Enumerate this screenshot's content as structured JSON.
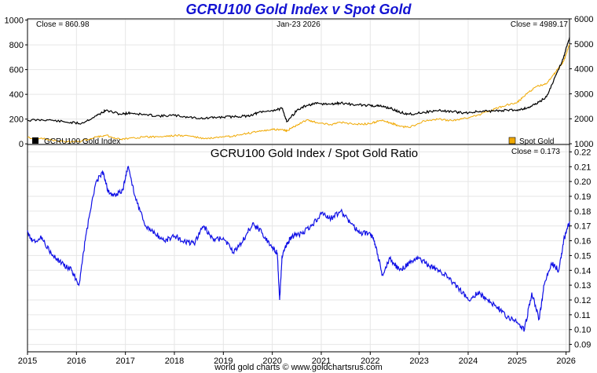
{
  "header": {
    "title": "GCRU100 Gold Index v Spot Gold"
  },
  "footer": {
    "credit": "world gold charts © www.goldchartsrus.com"
  },
  "colors": {
    "index": "#000000",
    "spot_gold": "#f0a800",
    "ratio": "#1010e6",
    "grid": "#e6e6e6"
  },
  "chart_data": [
    {
      "type": "line",
      "title": "",
      "date_label": "Jan-23  2026",
      "close_left": "Close = 860.98",
      "close_right": "Close = 4989.17",
      "x_ticks": [
        2015,
        2016,
        2017,
        2018,
        2019,
        2020,
        2021,
        2022,
        2023,
        2024,
        2025,
        2026
      ],
      "xlim": [
        2015.0,
        2026.07
      ],
      "left_axis": {
        "ticks": [
          0,
          200,
          400,
          600,
          800,
          1000
        ],
        "ylim": [
          -5,
          1010
        ]
      },
      "right_axis": {
        "ticks": [
          1000,
          2000,
          3000,
          4000,
          5000,
          6000
        ],
        "ylim": [
          970,
          6000
        ]
      },
      "legend": {
        "left": "GCRU100 Gold Index",
        "right": "Spot Gold",
        "placement": "bottom"
      },
      "series": [
        {
          "name": "GCRU100 Gold Index",
          "axis": "left",
          "x": [
            2015.0,
            2015.4,
            2015.8,
            2016.1,
            2016.4,
            2016.6,
            2016.9,
            2017.1,
            2017.4,
            2017.7,
            2018.0,
            2018.3,
            2018.6,
            2018.9,
            2019.2,
            2019.5,
            2019.7,
            2020.0,
            2020.2,
            2020.3,
            2020.5,
            2020.7,
            2020.9,
            2021.2,
            2021.4,
            2021.7,
            2022.0,
            2022.2,
            2022.4,
            2022.6,
            2022.8,
            2023.1,
            2023.4,
            2023.7,
            2023.9,
            2024.2,
            2024.5,
            2024.7,
            2025.0,
            2025.2,
            2025.4,
            2025.6,
            2025.8,
            2025.95,
            2026.07
          ],
          "values": [
            190,
            195,
            175,
            165,
            225,
            270,
            240,
            250,
            235,
            225,
            230,
            215,
            205,
            215,
            220,
            225,
            250,
            270,
            285,
            180,
            270,
            310,
            325,
            320,
            330,
            315,
            310,
            305,
            290,
            255,
            240,
            255,
            270,
            260,
            250,
            260,
            265,
            270,
            275,
            290,
            325,
            380,
            560,
            700,
            861
          ]
        },
        {
          "name": "Spot Gold",
          "axis": "right",
          "x": [
            2015.0,
            2015.4,
            2015.8,
            2016.1,
            2016.4,
            2016.6,
            2016.9,
            2017.1,
            2017.4,
            2017.7,
            2018.0,
            2018.3,
            2018.6,
            2018.9,
            2019.2,
            2019.5,
            2019.7,
            2020.0,
            2020.2,
            2020.3,
            2020.5,
            2020.7,
            2020.9,
            2021.2,
            2021.4,
            2021.7,
            2022.0,
            2022.2,
            2022.4,
            2022.6,
            2022.8,
            2023.1,
            2023.4,
            2023.7,
            2023.9,
            2024.2,
            2024.5,
            2024.7,
            2025.0,
            2025.2,
            2025.4,
            2025.6,
            2025.8,
            2025.95,
            2026.07
          ],
          "values": [
            1250,
            1180,
            1080,
            1100,
            1270,
            1340,
            1170,
            1230,
            1270,
            1280,
            1330,
            1320,
            1200,
            1240,
            1300,
            1410,
            1500,
            1560,
            1580,
            1520,
            1750,
            1950,
            1850,
            1770,
            1850,
            1780,
            1800,
            1930,
            1850,
            1700,
            1650,
            1920,
            1980,
            1920,
            2000,
            2150,
            2350,
            2500,
            2650,
            3000,
            3300,
            3400,
            3900,
            4300,
            4989
          ]
        }
      ]
    },
    {
      "type": "line",
      "title": "GCRU100 Gold Index  /  Spot Gold Ratio",
      "close": "Close = 0.173",
      "x_ticks": [
        2015,
        2016,
        2017,
        2018,
        2019,
        2020,
        2021,
        2022,
        2023,
        2024,
        2025,
        2026
      ],
      "y_ticks": [
        0.09,
        0.1,
        0.11,
        0.12,
        0.13,
        0.14,
        0.15,
        0.16,
        0.17,
        0.18,
        0.19,
        0.2,
        0.21,
        0.22
      ],
      "xlim": [
        2015.0,
        2026.07
      ],
      "ylim": [
        0.085,
        0.225
      ],
      "series": [
        {
          "name": "",
          "x": [
            2015.0,
            2015.1,
            2015.3,
            2015.5,
            2015.7,
            2015.9,
            2016.05,
            2016.2,
            2016.4,
            2016.55,
            2016.65,
            2016.8,
            2016.95,
            2017.05,
            2017.2,
            2017.4,
            2017.6,
            2017.8,
            2018.0,
            2018.2,
            2018.4,
            2018.6,
            2018.8,
            2019.0,
            2019.2,
            2019.4,
            2019.6,
            2019.8,
            2020.0,
            2020.1,
            2020.15,
            2020.2,
            2020.3,
            2020.4,
            2020.6,
            2020.8,
            2021.0,
            2021.2,
            2021.4,
            2021.6,
            2021.8,
            2022.0,
            2022.1,
            2022.25,
            2022.4,
            2022.6,
            2022.8,
            2023.0,
            2023.2,
            2023.4,
            2023.6,
            2023.8,
            2024.0,
            2024.2,
            2024.4,
            2024.6,
            2024.8,
            2025.0,
            2025.15,
            2025.3,
            2025.45,
            2025.55,
            2025.7,
            2025.85,
            2025.95,
            2026.07
          ],
          "values": [
            0.167,
            0.16,
            0.162,
            0.15,
            0.145,
            0.14,
            0.13,
            0.165,
            0.2,
            0.206,
            0.193,
            0.19,
            0.195,
            0.21,
            0.19,
            0.17,
            0.165,
            0.16,
            0.163,
            0.16,
            0.158,
            0.17,
            0.16,
            0.162,
            0.152,
            0.16,
            0.172,
            0.165,
            0.155,
            0.152,
            0.12,
            0.15,
            0.158,
            0.163,
            0.165,
            0.17,
            0.178,
            0.175,
            0.18,
            0.172,
            0.165,
            0.165,
            0.158,
            0.137,
            0.148,
            0.14,
            0.145,
            0.148,
            0.143,
            0.14,
            0.135,
            0.128,
            0.12,
            0.125,
            0.12,
            0.115,
            0.108,
            0.105,
            0.1,
            0.125,
            0.107,
            0.13,
            0.145,
            0.14,
            0.16,
            0.173
          ]
        }
      ]
    }
  ]
}
